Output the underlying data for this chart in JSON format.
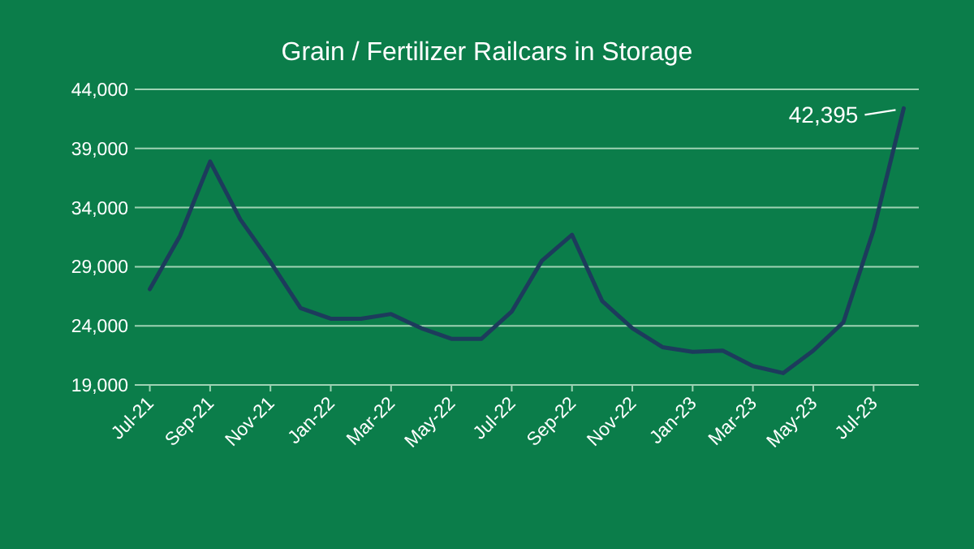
{
  "chart_data": {
    "type": "line",
    "title": "Grain / Fertilizer Railcars in Storage",
    "categories": [
      "Jul-21",
      null,
      "Sep-21",
      null,
      "Nov-21",
      null,
      "Jan-22",
      null,
      "Mar-22",
      null,
      "May-22",
      null,
      "Jul-22",
      null,
      "Sep-22",
      null,
      "Nov-22",
      null,
      "Jan-23",
      null,
      "Mar-23",
      null,
      "May-23",
      null,
      "Jul-23",
      null
    ],
    "series": [
      {
        "color": "#1d3b5c",
        "values": [
          27100,
          31600,
          37900,
          33000,
          29400,
          25500,
          24600,
          24600,
          25000,
          23800,
          22900,
          22900,
          25200,
          29500,
          31700,
          26100,
          23800,
          22200,
          21800,
          21900,
          20600,
          20000,
          21900,
          24300,
          32100,
          42395
        ],
        "value_labels": [
          null,
          null,
          null,
          null,
          null,
          null,
          null,
          null,
          null,
          null,
          null,
          null,
          null,
          null,
          null,
          null,
          null,
          null,
          null,
          null,
          null,
          null,
          null,
          null,
          null,
          "42,395"
        ]
      }
    ],
    "ylim": [
      19000,
      44000
    ],
    "yticks": [
      {
        "value": 19000,
        "label": "19,000"
      },
      {
        "value": 24000,
        "label": "24,000"
      },
      {
        "value": 29000,
        "label": "29,000"
      },
      {
        "value": 34000,
        "label": "34,000"
      },
      {
        "value": 39000,
        "label": "39,000"
      },
      {
        "value": 44000,
        "label": "44,000"
      }
    ],
    "grid": "y",
    "marker": "none",
    "line_style": "solid"
  }
}
